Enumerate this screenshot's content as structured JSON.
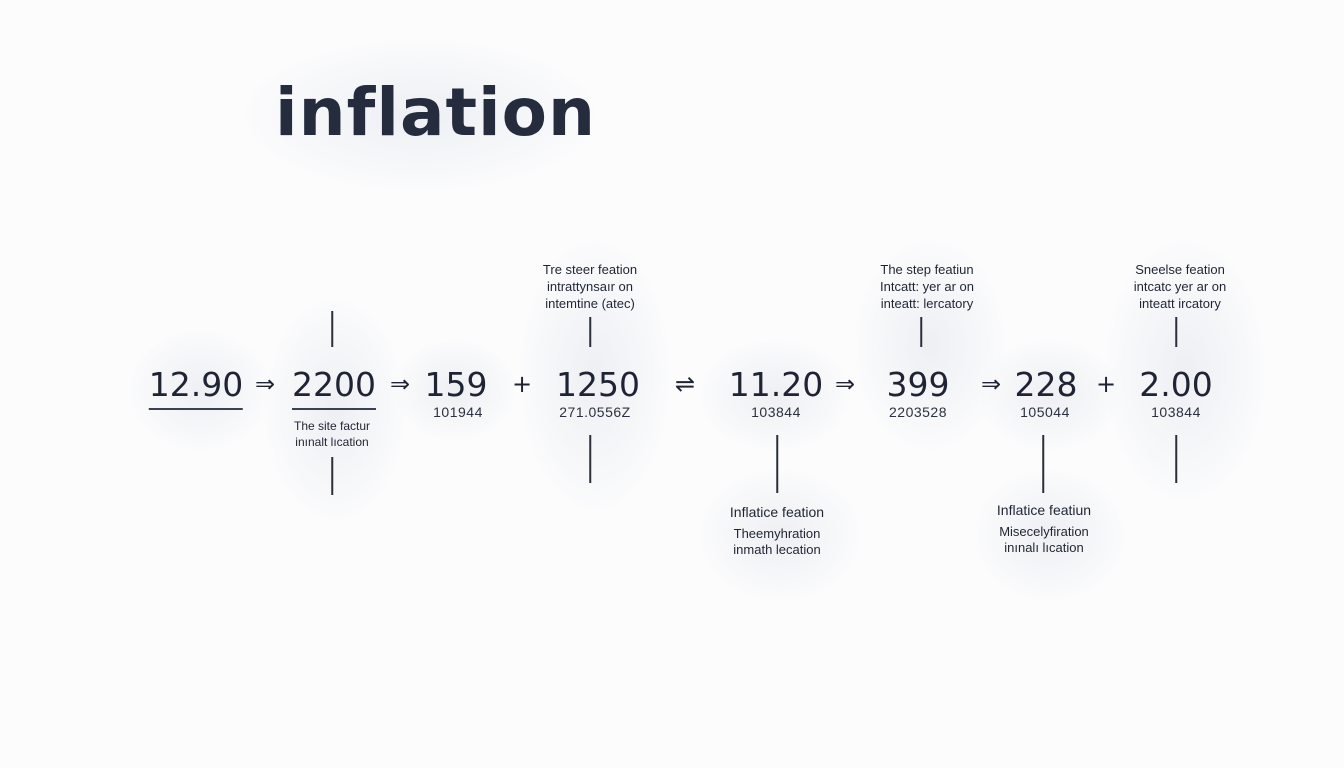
{
  "title": "inflation",
  "values": [
    {
      "number": "12.90",
      "sub": ""
    },
    {
      "number": "2200",
      "sub": ""
    },
    {
      "number": "159",
      "sub": "101944"
    },
    {
      "number": "1250",
      "sub": "271.0556Z"
    },
    {
      "number": "11.20",
      "sub": "103844"
    },
    {
      "number": "399",
      "sub": "2203528"
    },
    {
      "number": "228",
      "sub": "105044"
    },
    {
      "number": "2.00",
      "sub": "103844"
    }
  ],
  "operators": [
    "⇒",
    "⇒",
    "+",
    "⇌",
    "⇒",
    "⇒",
    "+"
  ],
  "labels": {
    "top_1": {
      "line1": "Tre steer feation",
      "line2": "intrattynsaır on",
      "line3": "intemtine (atec)"
    },
    "top_2": {
      "line1": "The step featiun",
      "line2": "Intcatt: yer ar on",
      "line3": "inteatt: lercatory"
    },
    "top_3": {
      "line1": "Sneelse feation",
      "line2": "intcatc yer ar on",
      "line3": "inteatt ircatory"
    },
    "mid_1": {
      "line1": "The site factur",
      "line2": "inınalt lıcation"
    },
    "bottom_1": {
      "line1": "Inflatice feation",
      "line2": "Theemyhration",
      "line3": "inmath lecation"
    },
    "bottom_2": {
      "line1": "Inflatice featiun",
      "line2": "Misecelyfiration",
      "line3": "inınalı lıcation"
    }
  }
}
